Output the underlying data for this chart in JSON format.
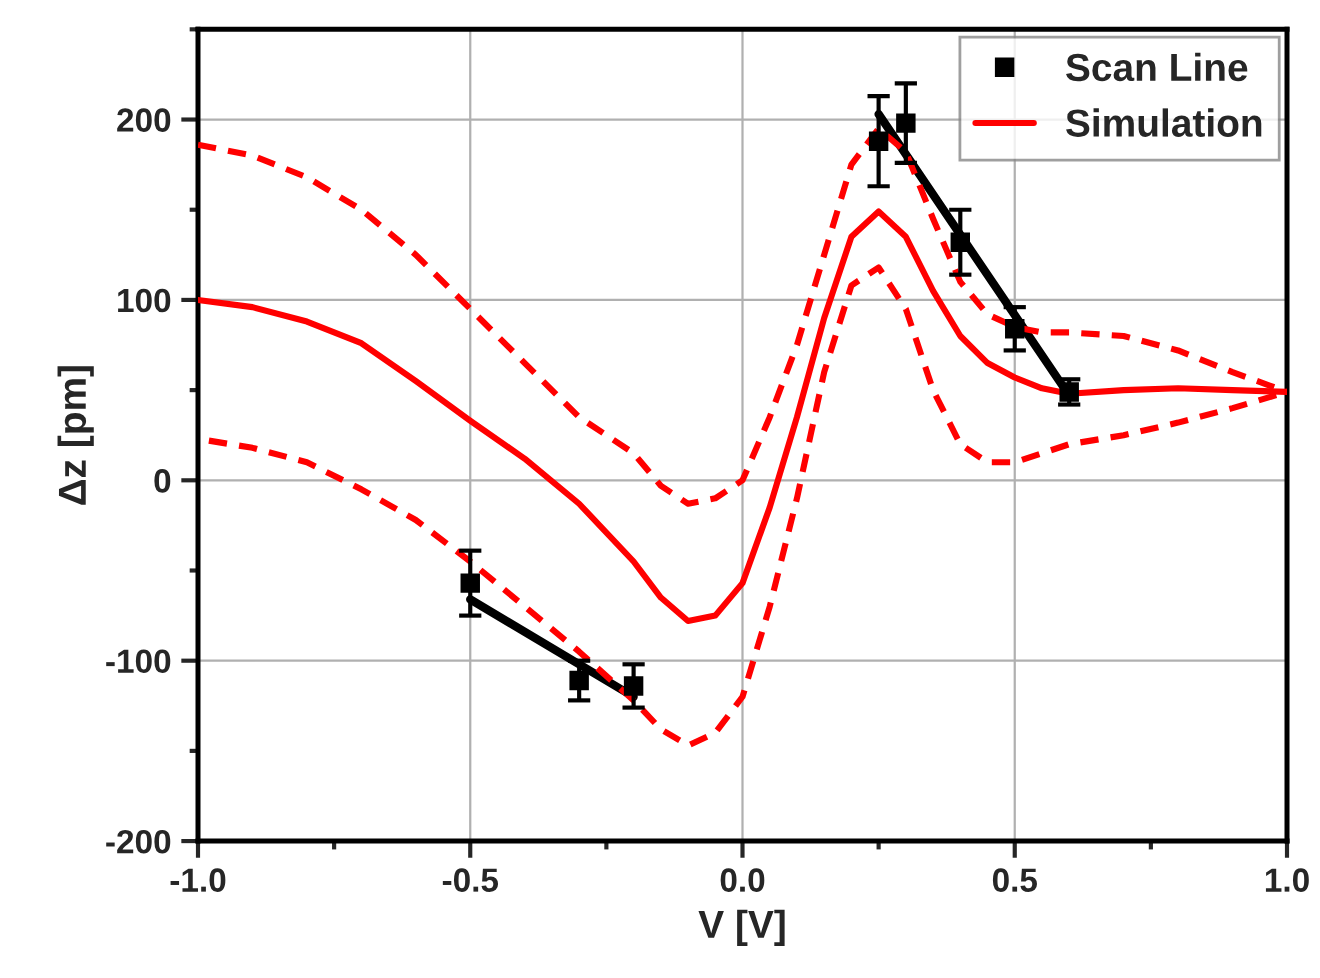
{
  "chart_data": {
    "type": "line",
    "xlabel": "V [V]",
    "ylabel": "Δz [pm]",
    "xlim": [
      -1.0,
      1.0
    ],
    "ylim": [
      -200,
      250
    ],
    "xticks": [
      {
        "value": -1,
        "label": "-1.0"
      },
      {
        "value": -0.5,
        "label": "-0.5"
      },
      {
        "value": 0,
        "label": "0.0"
      },
      {
        "value": 0.5,
        "label": "0.5"
      },
      {
        "value": 1,
        "label": "1.0"
      }
    ],
    "yticks": [
      -200,
      -100,
      0,
      100,
      200
    ],
    "grid": true,
    "legend": "top right",
    "series": [
      {
        "name": "Scan Line",
        "type": "scatter",
        "marker": "square",
        "color": "#000000",
        "x": [
          -0.5,
          -0.3,
          -0.2,
          0.25,
          0.3,
          0.4,
          0.5,
          0.6
        ],
        "values": [
          -57,
          -111,
          -114,
          188,
          198,
          132,
          84,
          49
        ],
        "errors": [
          18,
          11,
          12,
          25,
          22,
          18,
          12,
          7
        ]
      },
      {
        "color": "#000000",
        "line_style": "solid",
        "x": [
          -0.5,
          -0.2
        ],
        "values": [
          -66,
          -120
        ]
      },
      {
        "color": "#000000",
        "line_style": "solid",
        "x": [
          0.25,
          0.6
        ],
        "values": [
          203,
          47
        ]
      },
      {
        "name": "Simulation",
        "color": "#ff0000",
        "line_style": "solid",
        "x": [
          -1.0,
          -0.9,
          -0.8,
          -0.7,
          -0.6,
          -0.5,
          -0.4,
          -0.3,
          -0.2,
          -0.15,
          -0.1,
          -0.05,
          0.0,
          0.05,
          0.1,
          0.15,
          0.2,
          0.25,
          0.3,
          0.35,
          0.4,
          0.45,
          0.5,
          0.55,
          0.6,
          0.7,
          0.8,
          0.9,
          1.0
        ],
        "values": [
          100,
          96,
          88,
          76,
          55,
          33,
          12,
          -13,
          -45,
          -65,
          -78,
          -75,
          -57,
          -15,
          35,
          90,
          135,
          149,
          135,
          105,
          80,
          65,
          57,
          51,
          48,
          50,
          51,
          50,
          49
        ]
      },
      {
        "color": "#ff0000",
        "line_style": "dashed",
        "x": [
          -1.0,
          -0.9,
          -0.8,
          -0.7,
          -0.6,
          -0.5,
          -0.4,
          -0.3,
          -0.2,
          -0.15,
          -0.1,
          -0.05,
          0.0,
          0.05,
          0.1,
          0.15,
          0.2,
          0.25,
          0.3,
          0.35,
          0.4,
          0.45,
          0.5,
          0.55,
          0.6,
          0.7,
          0.8,
          0.9,
          1.0
        ],
        "values": [
          186,
          180,
          168,
          150,
          125,
          95,
          65,
          35,
          15,
          -3,
          -13,
          -10,
          0,
          35,
          75,
          125,
          175,
          195,
          182,
          145,
          110,
          92,
          85,
          82,
          82,
          80,
          72,
          60,
          49
        ]
      },
      {
        "color": "#ff0000",
        "line_style": "dashed",
        "x": [
          -0.98,
          -0.9,
          -0.8,
          -0.7,
          -0.6,
          -0.5,
          -0.4,
          -0.3,
          -0.2,
          -0.15,
          -0.1,
          -0.05,
          0.0,
          0.05,
          0.1,
          0.15,
          0.2,
          0.25,
          0.3,
          0.35,
          0.4,
          0.45,
          0.5,
          0.55,
          0.6,
          0.7,
          0.8,
          0.9,
          1.0
        ],
        "values": [
          22,
          18,
          10,
          -5,
          -22,
          -45,
          -70,
          -95,
          -122,
          -138,
          -147,
          -140,
          -120,
          -70,
          -10,
          60,
          108,
          118,
          95,
          50,
          20,
          10,
          10,
          15,
          20,
          25,
          32,
          40,
          49
        ]
      }
    ]
  }
}
